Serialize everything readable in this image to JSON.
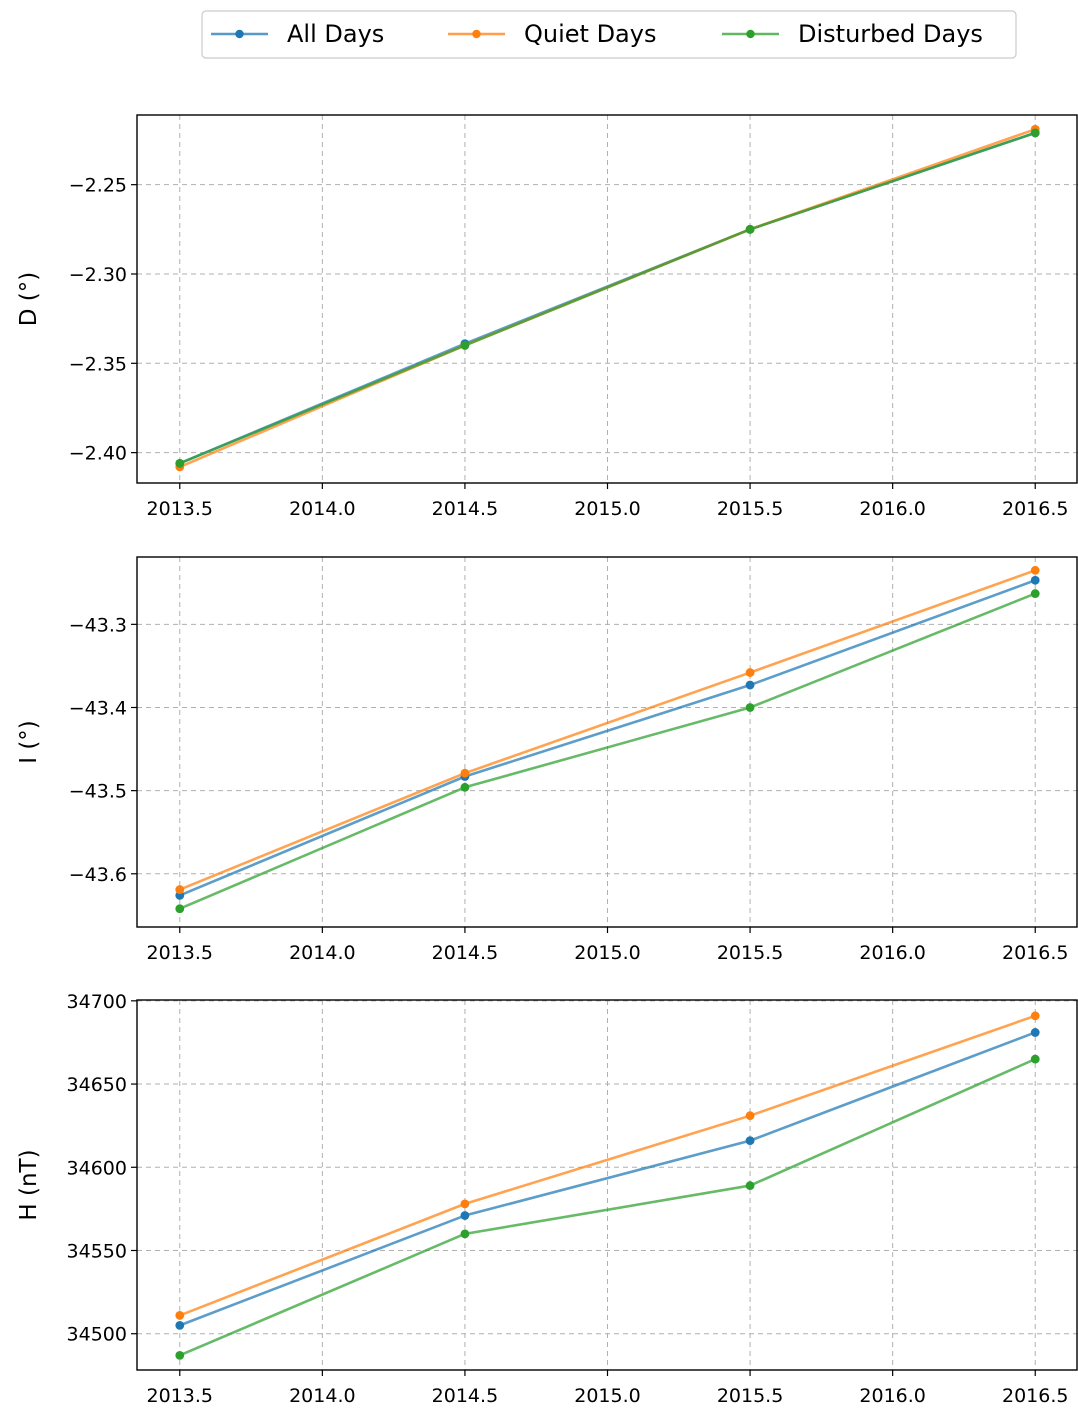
{
  "legend": {
    "placement": "top-center",
    "entries": [
      {
        "label": "All Days",
        "color": "#1f77b4"
      },
      {
        "label": "Quiet Days",
        "color": "#ff7f0e"
      },
      {
        "label": "Disturbed Days",
        "color": "#2ca02c"
      }
    ]
  },
  "chart_data": [
    {
      "type": "line",
      "ylabel": "D (°)",
      "xlabel": "",
      "x": [
        2013.5,
        2014.5,
        2015.5,
        2016.5
      ],
      "xticks": [
        "2013.5",
        "2014.0",
        "2014.5",
        "2015.0",
        "2015.5",
        "2016.0",
        "2016.5"
      ],
      "yticks": [
        "−2.40",
        "−2.35",
        "−2.30",
        "−2.25"
      ],
      "xlim": [
        2013.35,
        2016.65
      ],
      "ylim": [
        -2.417,
        -2.211
      ],
      "grid": true,
      "series": [
        {
          "name": "All Days",
          "values": [
            -2.406,
            -2.339,
            -2.275,
            -2.221
          ]
        },
        {
          "name": "Quiet Days",
          "values": [
            -2.408,
            -2.34,
            -2.275,
            -2.219
          ]
        },
        {
          "name": "Disturbed Days",
          "values": [
            -2.406,
            -2.34,
            -2.275,
            -2.221
          ]
        }
      ]
    },
    {
      "type": "line",
      "ylabel": "I (°)",
      "xlabel": "",
      "x": [
        2013.5,
        2014.5,
        2015.5,
        2016.5
      ],
      "xticks": [
        "2013.5",
        "2014.0",
        "2014.5",
        "2015.0",
        "2015.5",
        "2016.0",
        "2016.5"
      ],
      "yticks": [
        "−43.6",
        "−43.5",
        "−43.4",
        "−43.3"
      ],
      "xlim": [
        2013.35,
        2016.65
      ],
      "ylim": [
        -43.664,
        -43.219
      ],
      "grid": true,
      "series": [
        {
          "name": "All Days",
          "values": [
            -43.626,
            -43.483,
            -43.373,
            -43.247
          ]
        },
        {
          "name": "Quiet Days",
          "values": [
            -43.619,
            -43.479,
            -43.358,
            -43.235
          ]
        },
        {
          "name": "Disturbed Days",
          "values": [
            -43.642,
            -43.496,
            -43.4,
            -43.263
          ]
        }
      ]
    },
    {
      "type": "line",
      "ylabel": "H (nT)",
      "xlabel": "",
      "x": [
        2013.5,
        2014.5,
        2015.5,
        2016.5
      ],
      "xticks": [
        "2013.5",
        "2014.0",
        "2014.5",
        "2015.0",
        "2015.5",
        "2016.0",
        "2016.5"
      ],
      "yticks": [
        "34500",
        "34550",
        "34600",
        "34650",
        "34700"
      ],
      "xlim": [
        2013.35,
        2016.65
      ],
      "ylim": [
        34478.2,
        34700.5
      ],
      "grid": true,
      "series": [
        {
          "name": "All Days",
          "values": [
            34505,
            34571,
            34616,
            34681
          ]
        },
        {
          "name": "Quiet Days",
          "values": [
            34511,
            34578,
            34631,
            34691
          ]
        },
        {
          "name": "Disturbed Days",
          "values": [
            34487,
            34560,
            34589,
            34665
          ]
        }
      ]
    }
  ]
}
